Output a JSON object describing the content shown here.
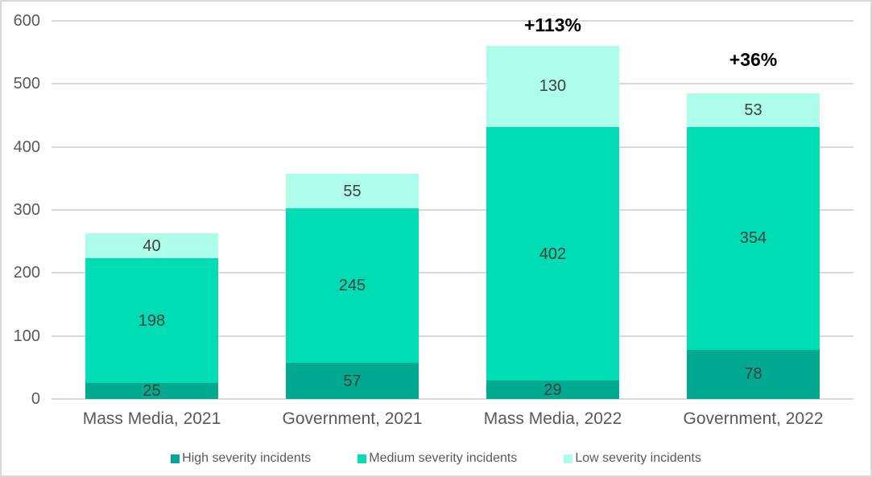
{
  "chart_data": {
    "type": "bar",
    "stacked": true,
    "title": "",
    "xlabel": "",
    "ylabel": "",
    "categories": [
      "Mass Media, 2021",
      "Government, 2021",
      "Mass Media, 2022",
      "Government, 2022"
    ],
    "series": [
      {
        "name": "High severity incidents",
        "color": "#00a98f",
        "values": [
          25,
          57,
          29,
          78
        ]
      },
      {
        "name": "Medium severity incidents",
        "color": "#00dcb4",
        "values": [
          198,
          245,
          402,
          354
        ]
      },
      {
        "name": "Low severity incidents",
        "color": "#aefdeb",
        "values": [
          40,
          55,
          130,
          53
        ]
      }
    ],
    "totals": [
      263,
      357,
      561,
      485
    ],
    "annotations": [
      {
        "category_index": 2,
        "text": "+113%",
        "dy": 12
      },
      {
        "category_index": 3,
        "text": "+36%",
        "dy": 28
      }
    ],
    "ylim": [
      0,
      600
    ],
    "yticks": [
      0,
      100,
      200,
      300,
      400,
      500,
      600
    ],
    "grid": true,
    "legend_position": "bottom",
    "colors": {
      "gridline": "#d9d9d9",
      "frame_border": "#d9d9d9",
      "axis_text": "#595959",
      "value_text": "#404040",
      "annotation_text": "#000000",
      "background": "#ffffff"
    }
  }
}
